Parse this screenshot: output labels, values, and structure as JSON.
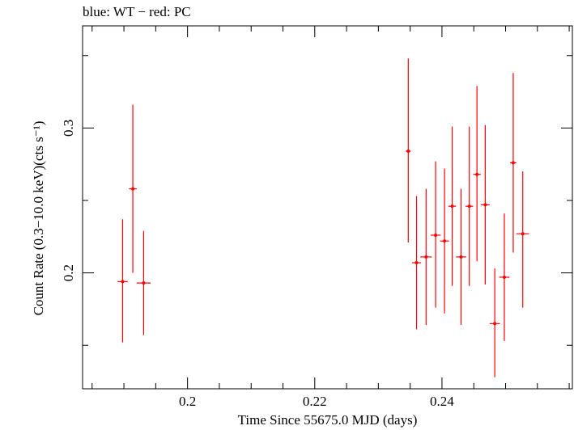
{
  "chart_data": {
    "type": "scatter",
    "title": "blue: WT − red: PC",
    "xlabel": "Time Since 55675.0 MJD (days)",
    "ylabel": "Count Rate (0.3−10.0 keV)(cts s⁻¹)",
    "xlim": [
      0.1835,
      0.2605
    ],
    "ylim": [
      0.12,
      0.3705
    ],
    "xticks": [
      0.2,
      0.22,
      0.24
    ],
    "xtick_labels": [
      "0.2",
      "0.22",
      "0.24"
    ],
    "yticks": [
      0.2,
      0.3
    ],
    "ytick_labels": [
      "0.2",
      "0.3"
    ],
    "grid": false,
    "series": [
      {
        "color": "#ff0000",
        "points": [
          {
            "x": 0.1898,
            "xerr": 0.0008,
            "y": 0.194,
            "ylo": 0.152,
            "yhi": 0.237
          },
          {
            "x": 0.1914,
            "xerr": 0.0006,
            "y": 0.258,
            "ylo": 0.2,
            "yhi": 0.316
          },
          {
            "x": 0.1931,
            "xerr": 0.0011,
            "y": 0.193,
            "ylo": 0.157,
            "yhi": 0.229
          },
          {
            "x": 0.2347,
            "xerr": 0.0004,
            "y": 0.284,
            "ylo": 0.221,
            "yhi": 0.348
          },
          {
            "x": 0.236,
            "xerr": 0.0007,
            "y": 0.207,
            "ylo": 0.161,
            "yhi": 0.253
          },
          {
            "x": 0.2375,
            "xerr": 0.0009,
            "y": 0.211,
            "ylo": 0.164,
            "yhi": 0.258
          },
          {
            "x": 0.239,
            "xerr": 0.0008,
            "y": 0.226,
            "ylo": 0.176,
            "yhi": 0.277
          },
          {
            "x": 0.2404,
            "xerr": 0.0007,
            "y": 0.222,
            "ylo": 0.172,
            "yhi": 0.272
          },
          {
            "x": 0.2416,
            "xerr": 0.0006,
            "y": 0.246,
            "ylo": 0.191,
            "yhi": 0.301
          },
          {
            "x": 0.243,
            "xerr": 0.0008,
            "y": 0.211,
            "ylo": 0.164,
            "yhi": 0.258
          },
          {
            "x": 0.2443,
            "xerr": 0.0006,
            "y": 0.246,
            "ylo": 0.191,
            "yhi": 0.301
          },
          {
            "x": 0.2455,
            "xerr": 0.0006,
            "y": 0.268,
            "ylo": 0.208,
            "yhi": 0.329
          },
          {
            "x": 0.2468,
            "xerr": 0.0007,
            "y": 0.247,
            "ylo": 0.192,
            "yhi": 0.302
          },
          {
            "x": 0.2483,
            "xerr": 0.0008,
            "y": 0.165,
            "ylo": 0.128,
            "yhi": 0.203
          },
          {
            "x": 0.2498,
            "xerr": 0.0008,
            "y": 0.197,
            "ylo": 0.153,
            "yhi": 0.241
          },
          {
            "x": 0.2512,
            "xerr": 0.0005,
            "y": 0.276,
            "ylo": 0.214,
            "yhi": 0.338
          },
          {
            "x": 0.2527,
            "xerr": 0.001,
            "y": 0.227,
            "ylo": 0.176,
            "yhi": 0.27
          }
        ]
      }
    ]
  }
}
